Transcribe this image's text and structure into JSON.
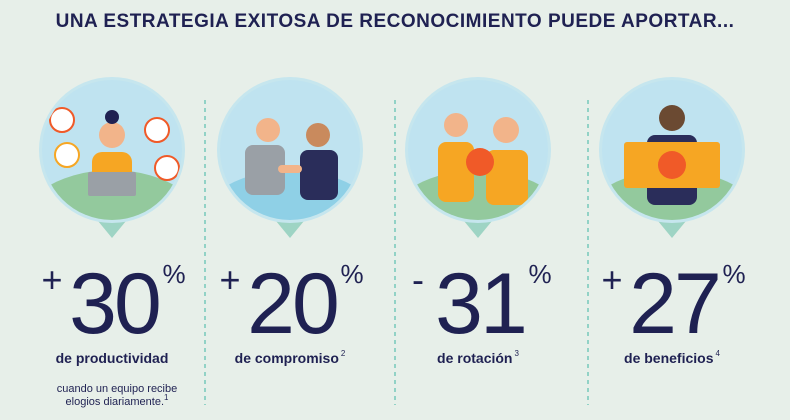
{
  "header": {
    "title": "UNA ESTRATEGIA EXITOSA DE RECONOCIMIENTO PUEDE APORTAR..."
  },
  "items": [
    {
      "sign": "+",
      "number": "30",
      "unit": "%",
      "label": "de productividad",
      "note": [
        "cuando un equipo recibe",
        "elogios diariamente."
      ],
      "note_sup": "1"
    },
    {
      "sign": "+",
      "number": "20",
      "unit": "%",
      "label": "de compromiso",
      "label_sup": "2"
    },
    {
      "sign": "-",
      "number": "31",
      "unit": "%",
      "label": "de rotación",
      "label_sup": "3"
    },
    {
      "sign": "+",
      "number": "27",
      "unit": "%",
      "label": "de beneficios",
      "label_sup": "4"
    }
  ]
}
